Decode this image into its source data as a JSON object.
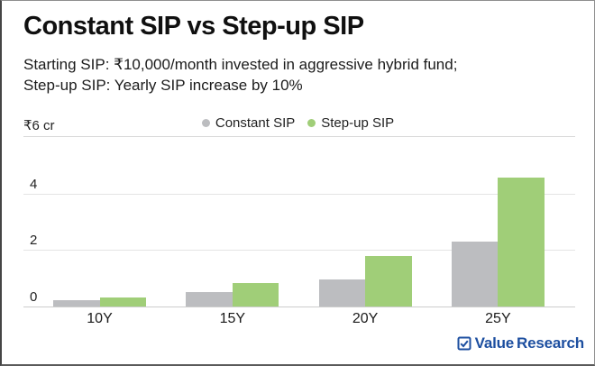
{
  "header": {
    "title": "Constant SIP vs Step-up SIP",
    "subtitle_line1": "Starting SIP: ₹10,000/month invested in aggressive hybrid fund;",
    "subtitle_line2": "Step-up SIP: Yearly SIP increase by 10%"
  },
  "chart_data": {
    "type": "bar",
    "title": "Constant SIP vs Step-up SIP",
    "unit_label": "₹6 cr",
    "categories": [
      "10Y",
      "15Y",
      "20Y",
      "25Y"
    ],
    "series": [
      {
        "name": "Constant SIP",
        "color": "#bcbdc0",
        "values": [
          0.23,
          0.5,
          0.97,
          2.3
        ]
      },
      {
        "name": "Step-up SIP",
        "color": "#a0ce78",
        "values": [
          0.33,
          0.83,
          1.8,
          4.55
        ]
      }
    ],
    "ylabel": "₹ cr",
    "ylim": [
      0,
      6
    ],
    "yticks": [
      0,
      2,
      4
    ],
    "grid": true,
    "legend_position": "top-center"
  },
  "footer": {
    "brand_part1": "Value",
    "brand_part2": "Research",
    "brand_color": "#1d4fa0"
  }
}
